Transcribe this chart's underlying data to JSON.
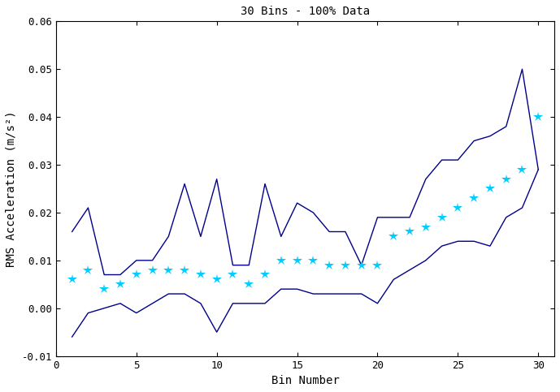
{
  "title": "30 Bins - 100% Data",
  "xlabel": "Bin Number",
  "ylabel": "RMS Acceleration (m/s²)",
  "xlim": [
    0,
    31
  ],
  "ylim": [
    -0.01,
    0.06
  ],
  "xticks": [
    0,
    5,
    10,
    15,
    20,
    25,
    30
  ],
  "yticks": [
    -0.01,
    0.0,
    0.01,
    0.02,
    0.03,
    0.04,
    0.05,
    0.06
  ],
  "line_color": "#00008B",
  "dot_color": "#00CCFF",
  "bins": [
    1,
    2,
    3,
    4,
    5,
    6,
    7,
    8,
    9,
    10,
    11,
    12,
    13,
    14,
    15,
    16,
    17,
    18,
    19,
    20,
    21,
    22,
    23,
    24,
    25,
    26,
    27,
    28,
    29,
    30
  ],
  "upper_line": [
    0.016,
    0.021,
    0.007,
    0.007,
    0.01,
    0.01,
    0.015,
    0.026,
    0.015,
    0.027,
    0.009,
    0.009,
    0.026,
    0.015,
    0.022,
    0.02,
    0.016,
    0.016,
    0.009,
    0.019,
    0.019,
    0.019,
    0.027,
    0.031,
    0.031,
    0.035,
    0.036,
    0.038,
    0.05,
    0.029
  ],
  "lower_line": [
    -0.006,
    -0.001,
    0.0,
    0.001,
    -0.001,
    0.001,
    0.003,
    0.003,
    0.001,
    -0.005,
    0.001,
    0.001,
    0.001,
    0.004,
    0.004,
    0.003,
    0.003,
    0.003,
    0.003,
    0.001,
    0.006,
    0.008,
    0.01,
    0.013,
    0.014,
    0.014,
    0.013,
    0.019,
    0.021,
    0.029
  ],
  "dots": [
    0.006,
    0.008,
    0.004,
    0.005,
    0.007,
    0.008,
    0.008,
    0.008,
    0.007,
    0.006,
    0.007,
    0.005,
    0.007,
    0.01,
    0.01,
    0.01,
    0.009,
    0.009,
    0.009,
    0.009,
    0.015,
    0.016,
    0.017,
    0.019,
    0.021,
    0.023,
    0.025,
    0.027,
    0.029,
    0.04
  ],
  "figsize": [
    6.89,
    4.83
  ],
  "dpi": 100
}
